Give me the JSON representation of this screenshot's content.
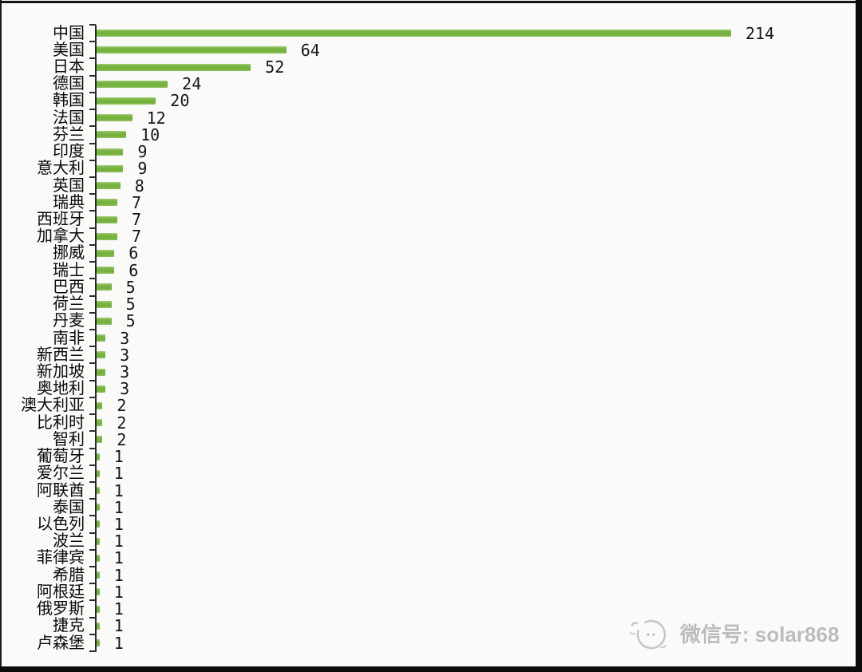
{
  "chart_data": {
    "type": "bar",
    "orientation": "horizontal",
    "title": "",
    "xlabel": "",
    "ylabel": "",
    "xlim": [
      0,
      230
    ],
    "gridlines": false,
    "legend": false,
    "data_labels": true,
    "bar_color": "#77b440",
    "value_label_color": "#151515",
    "categories": [
      "中国",
      "美国",
      "日本",
      "德国",
      "韩国",
      "法国",
      "芬兰",
      "印度",
      "意大利",
      "英国",
      "瑞典",
      "西班牙",
      "加拿大",
      "挪威",
      "瑞士",
      "巴西",
      "荷兰",
      "丹麦",
      "南非",
      "新西兰",
      "新加坡",
      "奥地利",
      "澳大利亚",
      "比利时",
      "智利",
      "葡萄牙",
      "爱尔兰",
      "阿联酋",
      "泰国",
      "以色列",
      "波兰",
      "菲律宾",
      "希腊",
      "阿根廷",
      "俄罗斯",
      "捷克",
      "卢森堡"
    ],
    "values": [
      214,
      64,
      52,
      24,
      20,
      12,
      10,
      9,
      9,
      8,
      7,
      7,
      7,
      6,
      6,
      5,
      5,
      5,
      3,
      3,
      3,
      3,
      2,
      2,
      2,
      1,
      1,
      1,
      1,
      1,
      1,
      1,
      1,
      1,
      1,
      1,
      1
    ]
  },
  "watermark": {
    "icon": "sun-face-logo",
    "text": "微信号: solar868"
  }
}
